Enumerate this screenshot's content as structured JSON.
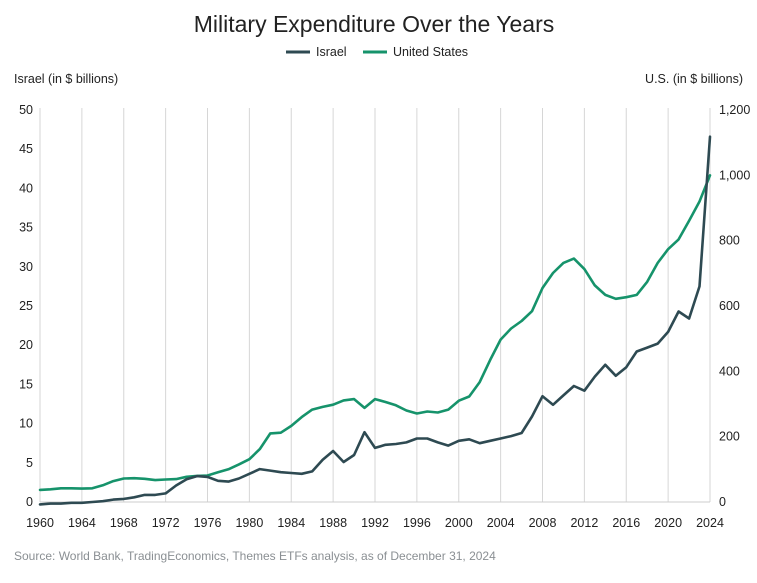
{
  "colors": {
    "israel": "#2e4a52",
    "us": "#16936b",
    "grid": "#d6d6d6",
    "text": "#222222",
    "source": "#8a8f93"
  },
  "source": "Source: World Bank, TradingEconomics, Themes ETFs analysis, as of December 31, 2024",
  "chart_data": {
    "type": "line",
    "title": "Military Expenditure Over the Years",
    "ylabel_left": "Israel (in $ billions)",
    "ylabel_right": "U.S. (in $ billions)",
    "legend_position": "top-center",
    "grid": "vertical",
    "xlim": [
      1960,
      2024
    ],
    "ylim_left": [
      0,
      50
    ],
    "ylim_right": [
      0,
      1200
    ],
    "x_ticks": [
      "1960",
      "1964",
      "1968",
      "1972",
      "1976",
      "1980",
      "1984",
      "1988",
      "1992",
      "1996",
      "2000",
      "2004",
      "2008",
      "2012",
      "2016",
      "2020",
      "2024"
    ],
    "y_left_ticks": [
      "0",
      "5",
      "10",
      "15",
      "20",
      "25",
      "30",
      "35",
      "40",
      "45",
      "50"
    ],
    "y_right_ticks": [
      "0",
      "200",
      "400",
      "600",
      "800",
      "1,000",
      "1,200"
    ],
    "x": [
      1960,
      1961,
      1962,
      1963,
      1964,
      1965,
      1966,
      1967,
      1968,
      1969,
      1970,
      1971,
      1972,
      1973,
      1974,
      1975,
      1976,
      1977,
      1978,
      1979,
      1980,
      1981,
      1982,
      1983,
      1984,
      1985,
      1986,
      1987,
      1988,
      1989,
      1990,
      1991,
      1992,
      1993,
      1994,
      1995,
      1996,
      1997,
      1998,
      1999,
      2000,
      2001,
      2002,
      2003,
      2004,
      2005,
      2006,
      2007,
      2008,
      2009,
      2010,
      2011,
      2012,
      2013,
      2014,
      2015,
      2016,
      2017,
      2018,
      2019,
      2020,
      2021,
      2022,
      2023,
      2024
    ],
    "series": [
      {
        "name": "Israel",
        "axis": "left",
        "values": [
          -0.3,
          -0.2,
          -0.2,
          -0.1,
          -0.1,
          0.0,
          0.1,
          0.3,
          0.4,
          0.6,
          0.9,
          0.9,
          1.1,
          2.1,
          2.9,
          3.3,
          3.2,
          2.7,
          2.6,
          3.0,
          3.6,
          4.2,
          4.0,
          3.8,
          3.7,
          3.6,
          3.9,
          5.4,
          6.5,
          5.1,
          6.0,
          8.9,
          6.9,
          7.3,
          7.4,
          7.6,
          8.1,
          8.1,
          7.6,
          7.2,
          7.8,
          8.0,
          7.5,
          7.8,
          8.1,
          8.4,
          8.8,
          10.9,
          13.5,
          12.4,
          13.6,
          14.8,
          14.2,
          16.0,
          17.5,
          16.1,
          17.2,
          19.2,
          19.7,
          20.2,
          21.7,
          24.3,
          23.4,
          27.5,
          46.6
        ]
      },
      {
        "name": "United States",
        "axis": "right",
        "values": [
          37,
          39,
          42,
          42,
          41,
          42,
          51,
          64,
          72,
          73,
          71,
          67,
          69,
          70,
          77,
          80,
          81,
          91,
          100,
          115,
          131,
          162,
          210,
          212,
          233,
          260,
          283,
          291,
          298,
          311,
          315,
          288,
          315,
          306,
          296,
          280,
          271,
          277,
          274,
          283,
          310,
          323,
          367,
          435,
          497,
          531,
          554,
          584,
          655,
          701,
          732,
          745,
          713,
          663,
          634,
          622,
          627,
          634,
          674,
          732,
          774,
          804,
          861,
          920,
          1000
        ]
      }
    ]
  }
}
